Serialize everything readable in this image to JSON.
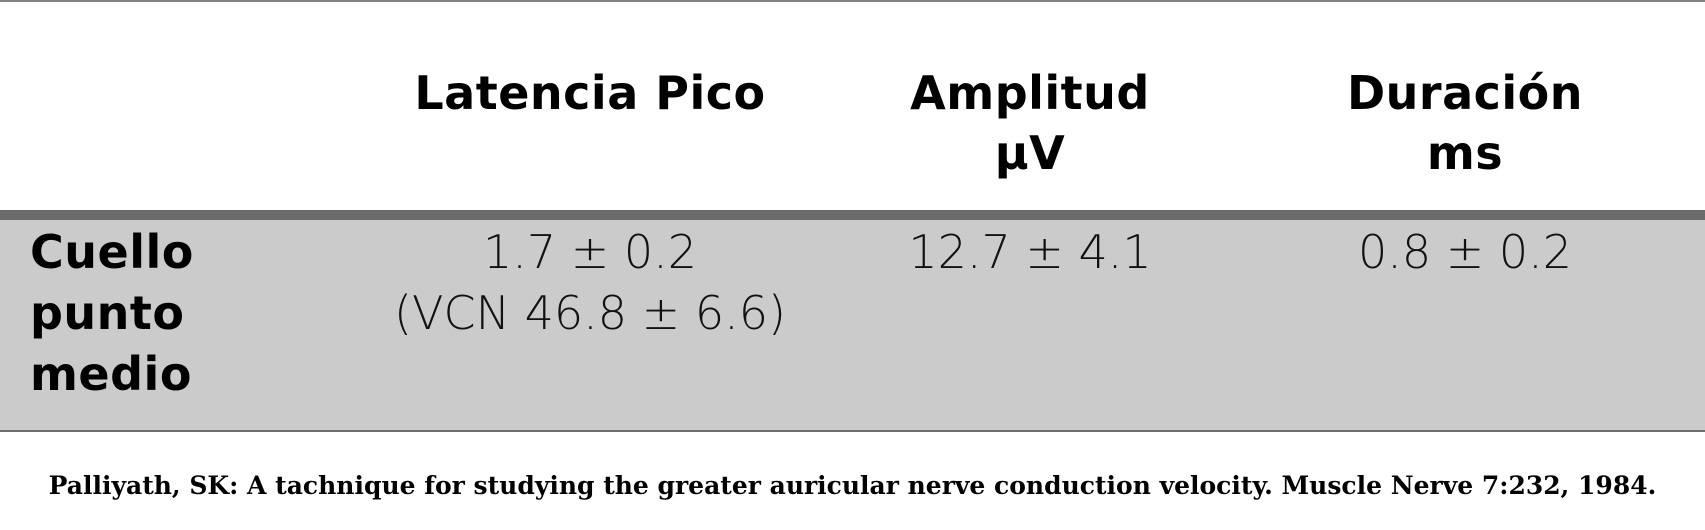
{
  "table": {
    "headers": [
      {
        "lines": [
          "Latencia Pico"
        ]
      },
      {
        "lines": [
          "Amplitud",
          "µV"
        ]
      },
      {
        "lines": [
          "Duración",
          "ms"
        ]
      }
    ],
    "rows": [
      {
        "label_lines": [
          "Cuello",
          "punto",
          "medio"
        ],
        "cells": [
          {
            "lines": [
              "1.7 ± 0.2",
              "(VCN 46.8 ± 6.6)"
            ]
          },
          {
            "lines": [
              "12.7 ± 4.1"
            ]
          },
          {
            "lines": [
              "0.8 ± 0.2"
            ]
          }
        ]
      }
    ]
  },
  "citation": "Palliyath, SK: A tachnique for studying the greater auricular nerve conduction velocity. Muscle Nerve 7:232, 1984.",
  "colors": {
    "row_band": "#cbcbcb",
    "row_rule": "#6b6b6b",
    "text": "#000000"
  }
}
